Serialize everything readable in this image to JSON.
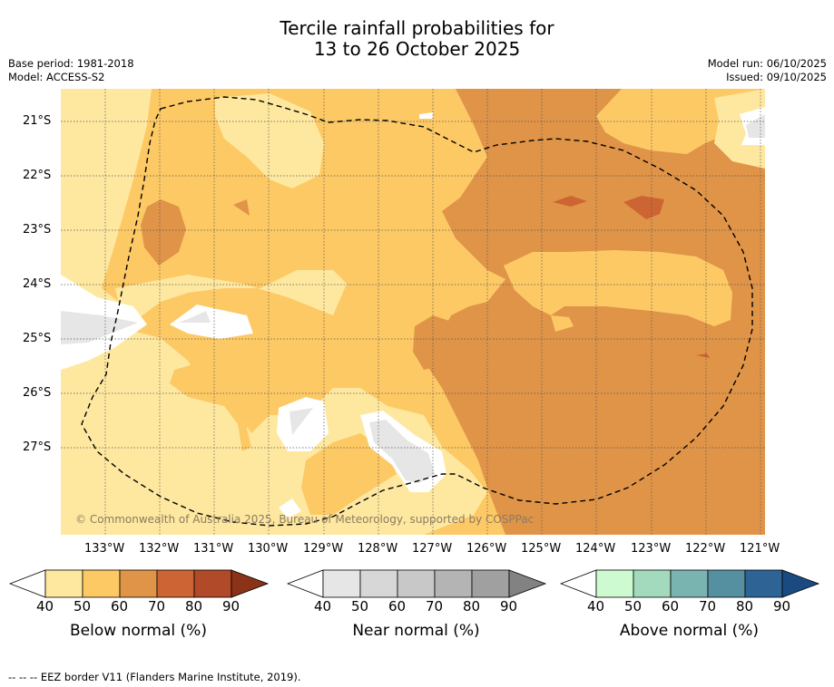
{
  "title": {
    "line1": "Tercile rainfall probabilities for",
    "line2": "13 to 26 October 2025"
  },
  "meta": {
    "base_period": "Base period: 1981-2018",
    "model": "Model: ACCESS-S2",
    "model_run": "Model run: 06/10/2025",
    "issued": "Issued: 09/10/2025"
  },
  "map": {
    "copyright": "© Commonwealth of Australia 2025, Bureau of Meteorology, supported by COSPPac",
    "lat_labels": [
      "21°S",
      "22°S",
      "23°S",
      "24°S",
      "25°S",
      "26°S",
      "27°S"
    ],
    "lon_labels": [
      "133°W",
      "132°W",
      "131°W",
      "130°W",
      "129°W",
      "128°W",
      "127°W",
      "126°W",
      "125°W",
      "124°W",
      "123°W",
      "122°W",
      "121°W"
    ],
    "lon_range": [
      "133.8°W",
      "120.9°W"
    ],
    "lat_range": [
      "20.4°S",
      "28.6°S"
    ],
    "eez_border": "dashed"
  },
  "colorbars": [
    {
      "label": "Below normal (%)",
      "ticks": [
        "40",
        "50",
        "60",
        "70",
        "80",
        "90"
      ],
      "colors": [
        "#fff",
        "#fee8a0",
        "#fdc965",
        "#e09448",
        "#cc6433",
        "#b04a28",
        "#8a3318"
      ]
    },
    {
      "label": "Near normal (%)",
      "ticks": [
        "40",
        "50",
        "60",
        "70",
        "80",
        "90"
      ],
      "colors": [
        "#fff",
        "#e6e6e6",
        "#d7d7d7",
        "#c8c8c8",
        "#b4b4b4",
        "#a0a0a0",
        "#828282"
      ]
    },
    {
      "label": "Above normal (%)",
      "ticks": [
        "40",
        "50",
        "60",
        "70",
        "80",
        "90"
      ],
      "colors": [
        "#fff",
        "#cdfad0",
        "#a3d9bd",
        "#7ab4b1",
        "#5590a0",
        "#2d6395",
        "#1b4a80"
      ]
    }
  ],
  "footnote": "--  --  -- EEZ border V11 (Flanders Marine Institute, 2019)."
}
